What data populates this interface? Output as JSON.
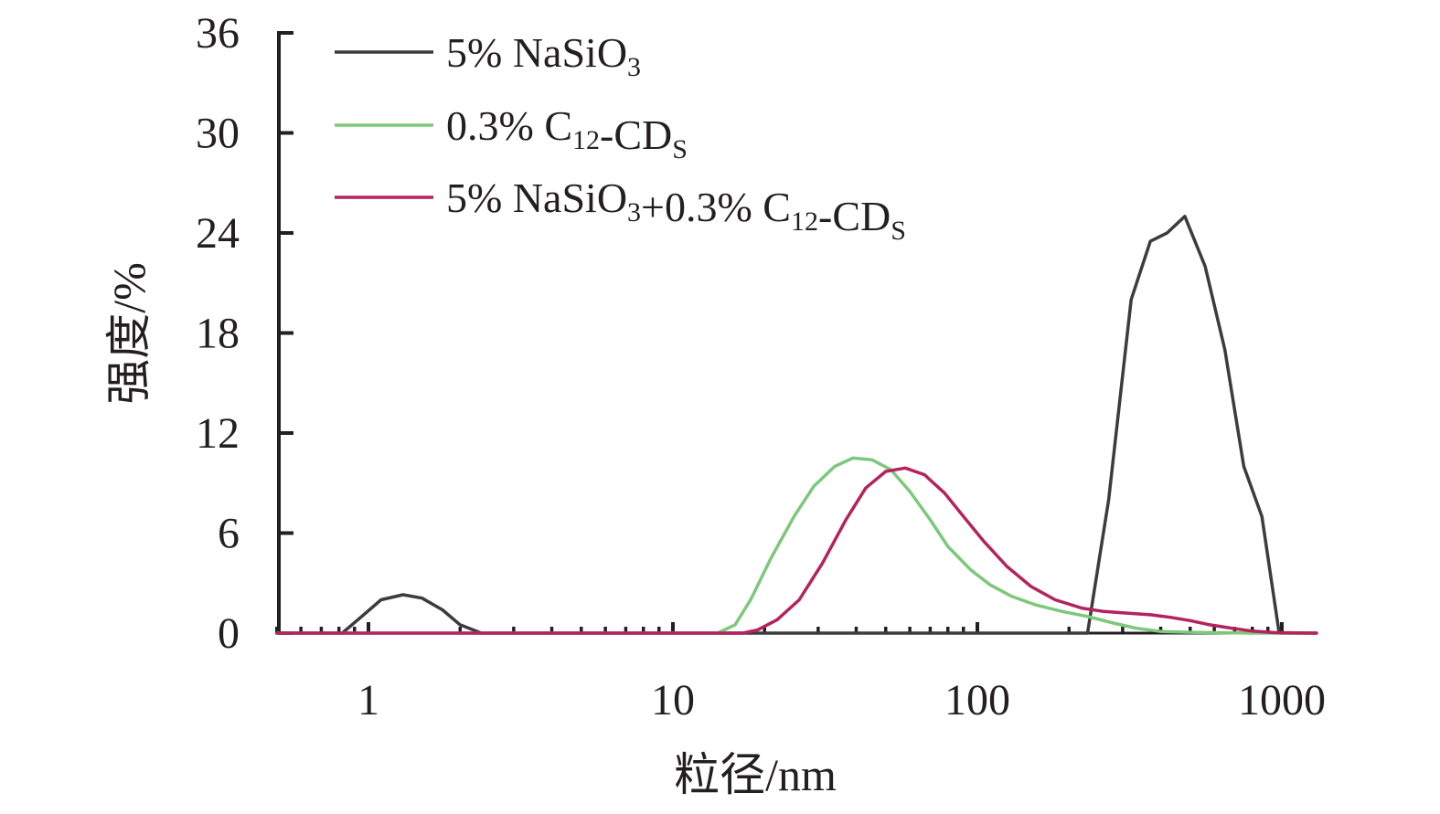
{
  "chart_data": {
    "type": "line",
    "xscale": "log",
    "xlim": [
      0.5,
      1300
    ],
    "ylim": [
      0,
      36
    ],
    "xlabel": "粒径/nm",
    "ylabel": "强度/%",
    "xticks": [
      "1",
      "10",
      "100",
      "1000"
    ],
    "yticks": [
      "0",
      "6",
      "12",
      "18",
      "24",
      "30",
      "36"
    ],
    "legend_position": "top-left",
    "series": [
      {
        "name": "5% NaSiO3",
        "legend": {
          "parts": [
            {
              "t": "5% NaSiO"
            },
            {
              "t": "3",
              "sub": true
            }
          ]
        },
        "color": "#3c3c3e",
        "x": [
          0.5,
          0.82,
          0.95,
          1.1,
          1.3,
          1.5,
          1.75,
          2.0,
          2.35,
          230,
          270,
          320,
          370,
          420,
          480,
          560,
          650,
          750,
          860,
          980,
          1300
        ],
        "y": [
          0,
          0,
          1.0,
          2.0,
          2.3,
          2.1,
          1.4,
          0.5,
          0,
          0,
          8.0,
          20.0,
          23.5,
          24.0,
          25.0,
          22.0,
          17.0,
          10.0,
          7.0,
          0,
          0
        ]
      },
      {
        "name": "0.3% C12-CDS",
        "legend": {
          "parts": [
            {
              "t": "0.3% C"
            },
            {
              "t": "12",
              "sub": true
            },
            {
              "t": "-CD"
            },
            {
              "t": "S",
              "sub": true
            }
          ]
        },
        "color": "#7dc87a",
        "x": [
          0.5,
          14,
          16,
          18,
          21,
          25,
          29,
          34,
          39,
          45,
          52,
          60,
          70,
          80,
          95,
          110,
          130,
          155,
          190,
          230,
          280,
          330,
          400,
          500,
          650,
          800,
          1000,
          1300
        ],
        "y": [
          0,
          0,
          0.5,
          2.0,
          4.5,
          7.0,
          8.8,
          10.0,
          10.5,
          10.4,
          9.8,
          8.5,
          6.8,
          5.2,
          3.8,
          2.9,
          2.2,
          1.7,
          1.3,
          1.0,
          0.6,
          0.3,
          0.1,
          0.05,
          0.02,
          0,
          0,
          0
        ]
      },
      {
        "name": "5% NaSiO3+0.3% C12-CDS",
        "legend": {
          "parts": [
            {
              "t": "5% NaSiO"
            },
            {
              "t": "3",
              "sub": true
            },
            {
              "t": "+0.3% C"
            },
            {
              "t": "12",
              "sub": true
            },
            {
              "t": "-CD"
            },
            {
              "t": "S",
              "sub": true
            }
          ]
        },
        "color": "#b4235e",
        "x": [
          0.5,
          17,
          19,
          22,
          26,
          31,
          37,
          43,
          50,
          58,
          67,
          78,
          90,
          105,
          125,
          150,
          180,
          220,
          260,
          310,
          370,
          430,
          500,
          580,
          680,
          800,
          950,
          1300
        ],
        "y": [
          0,
          0,
          0.2,
          0.8,
          2.0,
          4.2,
          6.8,
          8.7,
          9.7,
          9.9,
          9.5,
          8.4,
          7.0,
          5.5,
          4.0,
          2.8,
          2.0,
          1.5,
          1.3,
          1.2,
          1.1,
          0.95,
          0.75,
          0.5,
          0.3,
          0.12,
          0.03,
          0
        ]
      }
    ]
  }
}
